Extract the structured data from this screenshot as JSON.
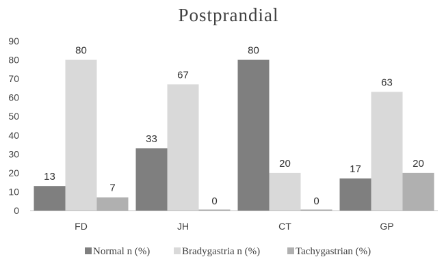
{
  "chart_data": {
    "type": "bar",
    "title": "Postprandial",
    "categories": [
      "FD",
      "JH",
      "CT",
      "GP"
    ],
    "series": [
      {
        "name": "Normal n (%)",
        "values": [
          13,
          33,
          80,
          17
        ],
        "color": "#7f7f7f"
      },
      {
        "name": "Bradygastria n (%)",
        "values": [
          80,
          67,
          20,
          63
        ],
        "color": "#d9d9d9"
      },
      {
        "name": "Tachygastrian (%)",
        "values": [
          7,
          0,
          0,
          20
        ],
        "color": "#b0b0b0"
      }
    ],
    "data_labels": [
      [
        "13",
        "33",
        "80",
        "17"
      ],
      [
        "80",
        "67",
        "20",
        "63"
      ],
      [
        "7",
        "0",
        "0",
        "20"
      ]
    ],
    "ylim": [
      0,
      90
    ],
    "yticks": [
      0,
      10,
      20,
      30,
      40,
      50,
      60,
      70,
      80,
      90
    ],
    "xlabel": "",
    "ylabel": "",
    "grid": false,
    "legend_position": "bottom"
  }
}
